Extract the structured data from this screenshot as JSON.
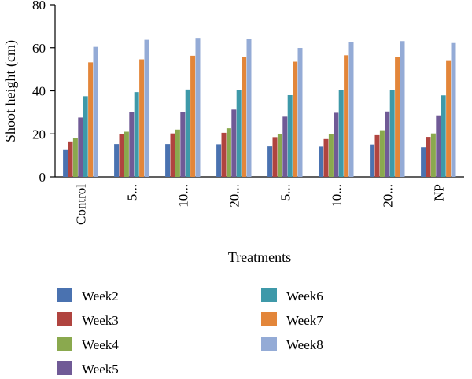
{
  "chart_data": {
    "type": "bar",
    "xlabel": "Treatments",
    "ylabel": "Shoot height (cm)",
    "ylim": [
      0,
      80
    ],
    "yticks": [
      0,
      20,
      40,
      60,
      80
    ],
    "grid": false,
    "legend_position": "bottom",
    "categories": [
      "Control",
      "5...",
      "10...",
      "20...",
      "5...",
      "10...",
      "20...",
      "NP"
    ],
    "series": [
      {
        "name": "Week2",
        "color": "#4a72b0",
        "values": [
          12.5,
          15.3,
          15.3,
          15.2,
          14.2,
          14.1,
          15.1,
          13.8
        ]
      },
      {
        "name": "Week3",
        "color": "#b0443f",
        "values": [
          16.5,
          19.8,
          20.2,
          20.5,
          18.5,
          17.6,
          19.4,
          18.6
        ]
      },
      {
        "name": "Week4",
        "color": "#8aa94e",
        "values": [
          18.2,
          21.0,
          22.0,
          22.6,
          20.0,
          20.0,
          21.7,
          20.2
        ]
      },
      {
        "name": "Week5",
        "color": "#705a96",
        "values": [
          27.6,
          30.0,
          30.0,
          31.3,
          28.0,
          29.8,
          30.4,
          28.6
        ]
      },
      {
        "name": "Week6",
        "color": "#3e99a9",
        "values": [
          37.5,
          39.4,
          40.6,
          40.5,
          38.0,
          40.5,
          40.4,
          37.9
        ]
      },
      {
        "name": "Week7",
        "color": "#e3863a",
        "values": [
          53.2,
          54.6,
          56.3,
          55.8,
          53.5,
          56.5,
          55.7,
          54.2
        ]
      },
      {
        "name": "Week8",
        "color": "#94abd6",
        "values": [
          60.4,
          63.7,
          64.6,
          64.2,
          59.9,
          62.5,
          63.1,
          62.2
        ]
      }
    ]
  }
}
